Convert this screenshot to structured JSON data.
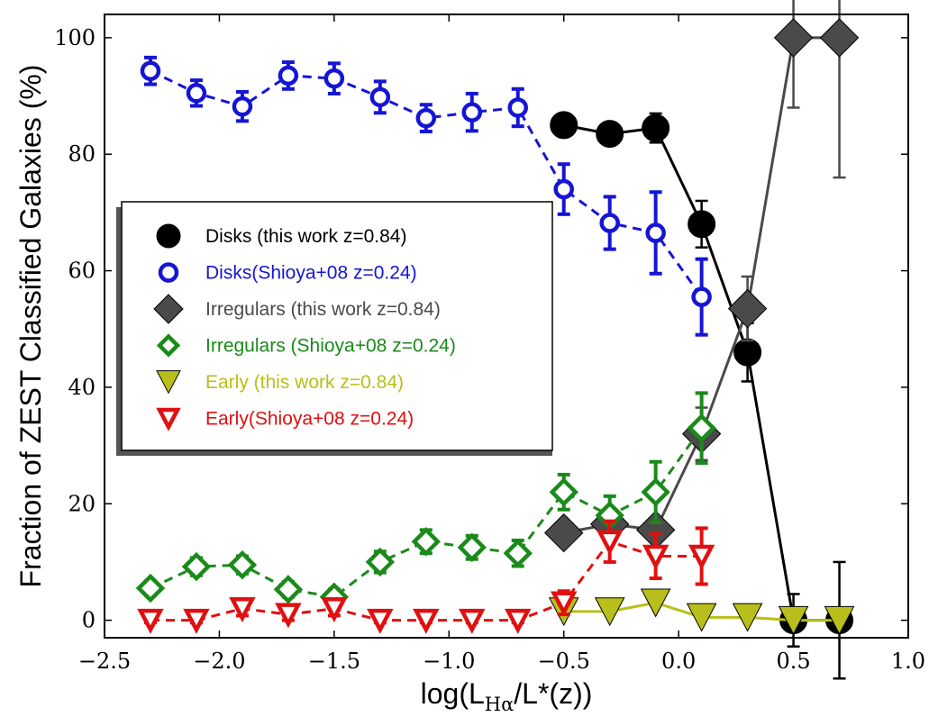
{
  "chart_data": {
    "type": "line",
    "title": "",
    "xlabel": "log(L",
    "xlabel_sub": "Hα",
    "xlabel_rest": "/L*(z))",
    "ylabel": "Fraction of ZEST Classified Galaxies (%)",
    "xlim": [
      -2.5,
      1.0
    ],
    "ylim": [
      -3,
      104
    ],
    "xticks": [
      -2.5,
      -2.0,
      -1.5,
      -1.0,
      -0.5,
      0.0,
      0.5,
      1.0
    ],
    "xtick_labels": [
      "−2.5",
      "−2.0",
      "−1.5",
      "−1.0",
      "−0.5",
      "0.0",
      "0.5",
      "1.0"
    ],
    "yticks": [
      0,
      20,
      40,
      60,
      80,
      100
    ],
    "ytick_labels": [
      "0",
      "20",
      "40",
      "60",
      "80",
      "100"
    ],
    "legend_position": "center-left",
    "series": [
      {
        "name": "Disks (this work z=0.84)",
        "color": "#000000",
        "marker": "circle",
        "filled": true,
        "dashed": false,
        "x": [
          -0.5,
          -0.3,
          -0.1,
          0.1,
          0.3,
          0.5,
          0.7
        ],
        "y": [
          85,
          83.5,
          84.5,
          68,
          46,
          0,
          0
        ],
        "err": [
          1.5,
          1.5,
          2.5,
          4,
          5,
          4.5,
          10
        ]
      },
      {
        "name": "Disks(Shioya+08 z=0.24)",
        "color": "#1515d5",
        "marker": "circle",
        "filled": false,
        "dashed": true,
        "x": [
          -2.3,
          -2.1,
          -1.9,
          -1.7,
          -1.5,
          -1.3,
          -1.1,
          -0.9,
          -0.7,
          -0.5,
          -0.3,
          -0.1,
          0.1
        ],
        "y": [
          94.3,
          90.5,
          88.2,
          93.5,
          93,
          89.8,
          86.2,
          87.2,
          88,
          74,
          68.2,
          66.5,
          55.5
        ],
        "err": [
          2.3,
          2.2,
          2.5,
          2.3,
          2.6,
          2.7,
          2.3,
          3.2,
          3.2,
          4.3,
          4.5,
          7,
          6.5
        ]
      },
      {
        "name": "Irregulars (this work z=0.84)",
        "color": "#4a4a4a",
        "marker": "diamond",
        "filled": true,
        "dashed": false,
        "x": [
          -0.5,
          -0.3,
          -0.1,
          0.1,
          0.3,
          0.5,
          0.7
        ],
        "y": [
          15,
          16.5,
          15.5,
          32,
          53.5,
          100,
          100
        ],
        "err": [
          1.5,
          1.5,
          1.5,
          4.5,
          5.5,
          12,
          24
        ]
      },
      {
        "name": "Irregulars (Shioya+08 z=0.24)",
        "color": "#1a8a1a",
        "marker": "diamond",
        "filled": false,
        "dashed": true,
        "x": [
          -2.3,
          -2.1,
          -1.9,
          -1.7,
          -1.5,
          -1.3,
          -1.1,
          -0.9,
          -0.7,
          -0.5,
          -0.3,
          -0.1,
          0.1
        ],
        "y": [
          5.5,
          9.2,
          9.5,
          5.3,
          4,
          10,
          13.5,
          12.5,
          11.5,
          22,
          18,
          22,
          33
        ],
        "err": [
          1.2,
          1.5,
          1.5,
          1.3,
          1.3,
          1.8,
          2,
          2,
          2.2,
          3,
          3.3,
          5.2,
          6
        ]
      },
      {
        "name": "Early (this work z=0.84)",
        "color": "#b8bf1a",
        "marker": "triangle-down",
        "filled": true,
        "dashed": false,
        "x": [
          -0.5,
          -0.3,
          -0.1,
          0.1,
          0.3,
          0.5,
          0.7
        ],
        "y": [
          1.5,
          1.5,
          3,
          0.5,
          0.5,
          0,
          0
        ],
        "err": [
          0,
          0,
          0,
          0,
          0,
          0,
          0
        ]
      },
      {
        "name": "Early(Shioya+08 z=0.24)",
        "color": "#e01010",
        "marker": "triangle-down",
        "filled": false,
        "dashed": true,
        "x": [
          -2.3,
          -2.1,
          -1.9,
          -1.7,
          -1.5,
          -1.3,
          -1.1,
          -0.9,
          -0.7,
          -0.5,
          -0.3,
          -0.1,
          0.1
        ],
        "y": [
          0,
          0,
          2,
          1,
          2,
          0,
          0,
          0,
          0,
          3,
          13.5,
          11,
          11
        ],
        "err": [
          0.4,
          0.4,
          1.2,
          1,
          1.2,
          0.4,
          0.4,
          0.4,
          0.4,
          2,
          3.5,
          3.8,
          4.8
        ]
      }
    ]
  }
}
